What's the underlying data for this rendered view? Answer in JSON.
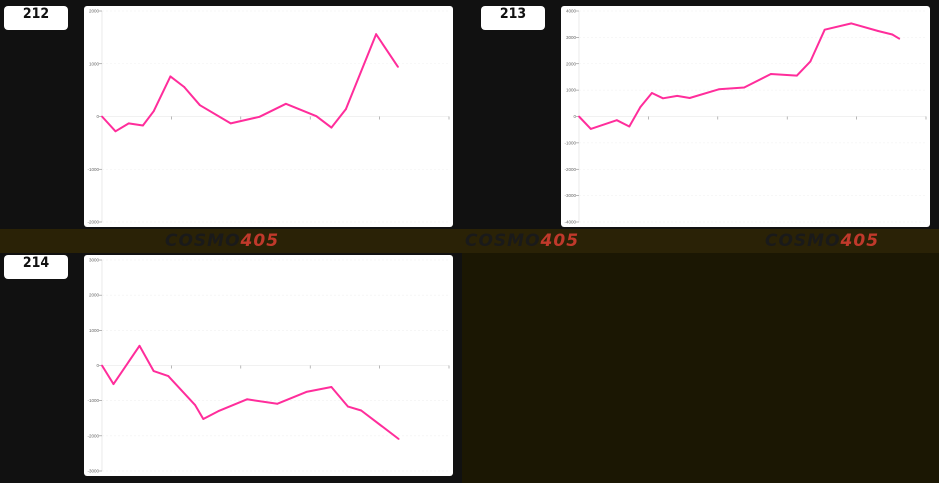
{
  "logo_text": "COSMO405",
  "line_color": "#ff2d9b",
  "chart_data": [
    {
      "type": "line",
      "label": "212",
      "ylim": [
        -2000,
        2000
      ],
      "yticks": [
        2000,
        1000,
        0,
        -1000,
        -2000
      ],
      "xlim": [
        0,
        100
      ],
      "xticks": [
        0,
        20,
        40,
        60,
        80,
        100
      ],
      "grid": true,
      "x": [
        0,
        3.9,
        7.7,
        11.8,
        14.9,
        19.7,
        23.7,
        28.2,
        37.1,
        45.4,
        53.0,
        61.8,
        66.1,
        70.3,
        79.0,
        85.3
      ],
      "y": [
        0,
        -280,
        -130,
        -170,
        100,
        760,
        560,
        215,
        -130,
        -5,
        240,
        5,
        -210,
        140,
        1560,
        940
      ]
    },
    {
      "type": "line",
      "label": "213",
      "ylim": [
        -4000,
        4000
      ],
      "yticks": [
        4000,
        3000,
        2000,
        1000,
        0,
        -1000,
        -2000,
        -3000,
        -4000
      ],
      "xlim": [
        0,
        100
      ],
      "xticks": [
        0,
        20,
        40,
        60,
        80,
        100
      ],
      "grid": true,
      "x": [
        0,
        3.4,
        10.9,
        14.5,
        17.7,
        21.0,
        24.2,
        28.3,
        31.9,
        40.3,
        47.6,
        55.3,
        62.8,
        66.7,
        70.8,
        78.5,
        86.2,
        90.3,
        92.3
      ],
      "y": [
        0,
        -470,
        -140,
        -380,
        360,
        890,
        690,
        780,
        700,
        1030,
        1100,
        1610,
        1550,
        2090,
        3290,
        3530,
        3240,
        3110,
        2950
      ]
    },
    {
      "type": "line",
      "label": "214",
      "ylim": [
        -3000,
        3000
      ],
      "yticks": [
        3000,
        2000,
        1000,
        0,
        -1000,
        -2000,
        -3000
      ],
      "xlim": [
        0,
        100
      ],
      "xticks": [
        0,
        20,
        40,
        60,
        80,
        100
      ],
      "grid": true,
      "x": [
        0,
        3.3,
        10.8,
        14.9,
        19.1,
        26.8,
        29.2,
        33.5,
        41.8,
        50.5,
        58.9,
        66.1,
        70.9,
        74.7,
        85.5
      ],
      "y": [
        0,
        -530,
        560,
        -160,
        -300,
        -1120,
        -1520,
        -1300,
        -960,
        -1090,
        -750,
        -610,
        -1170,
        -1280,
        -2090
      ]
    }
  ]
}
